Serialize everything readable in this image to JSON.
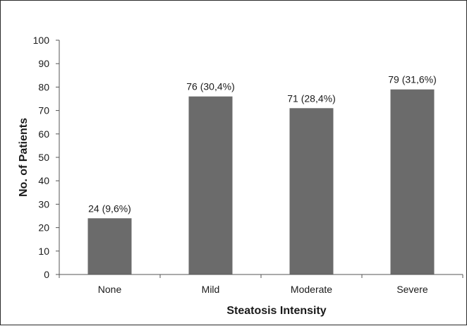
{
  "chart_data": {
    "type": "bar",
    "categories": [
      "None",
      "Mild",
      "Moderate",
      "Severe"
    ],
    "values": [
      24,
      76,
      71,
      79
    ],
    "data_labels": [
      "24 (9,6%)",
      "76 (30,4%)",
      "71 (28,4%)",
      "79 (31,6%)"
    ],
    "title": "",
    "xlabel": "Steatosis Intensity",
    "ylabel": "No. of Patients",
    "ylim": [
      0,
      100
    ],
    "yticks": [
      "0",
      "10",
      "20",
      "30",
      "40",
      "50",
      "60",
      "70",
      "80",
      "90",
      "100"
    ],
    "grid": false,
    "legend": "none",
    "bar_color": "#6b6b6b"
  }
}
